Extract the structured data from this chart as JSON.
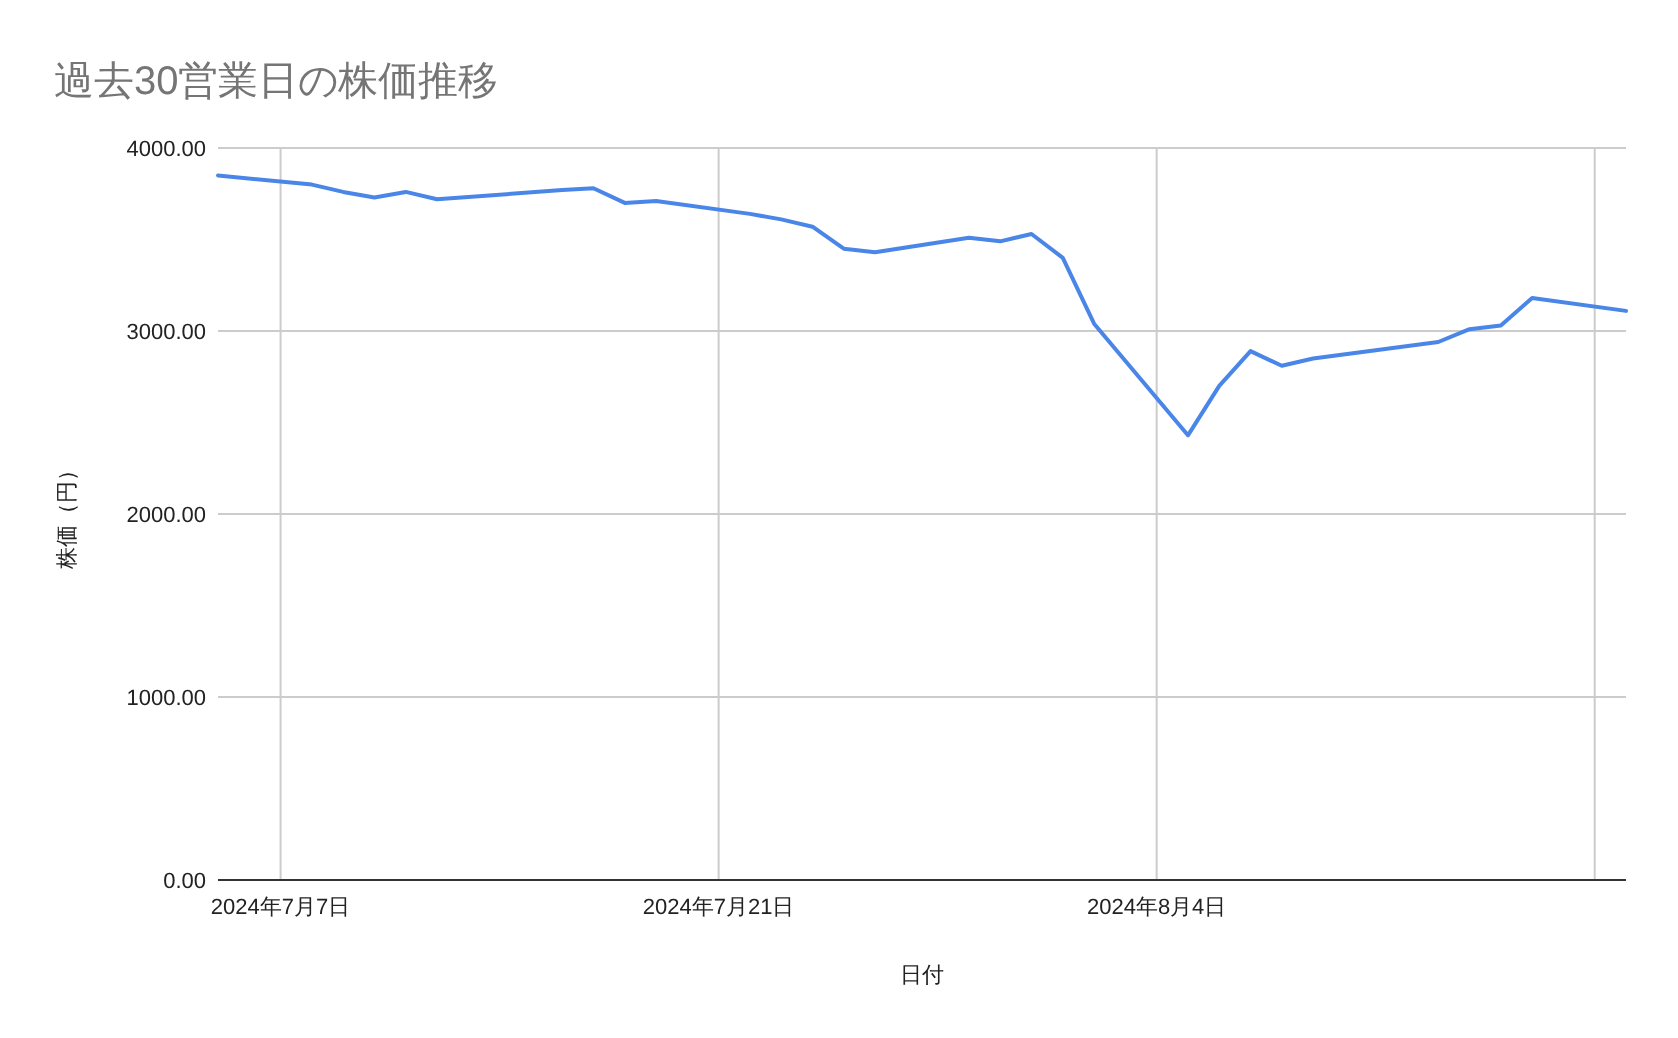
{
  "chart_data": {
    "type": "line",
    "title": "過去30営業日の株価推移",
    "xlabel": "日付",
    "ylabel": "株価（円）",
    "x": [
      "2024-07-05",
      "2024-07-08",
      "2024-07-09",
      "2024-07-10",
      "2024-07-11",
      "2024-07-12",
      "2024-07-16",
      "2024-07-17",
      "2024-07-18",
      "2024-07-19",
      "2024-07-22",
      "2024-07-23",
      "2024-07-24",
      "2024-07-25",
      "2024-07-26",
      "2024-07-29",
      "2024-07-30",
      "2024-07-31",
      "2024-08-01",
      "2024-08-02",
      "2024-08-05",
      "2024-08-06",
      "2024-08-07",
      "2024-08-08",
      "2024-08-09",
      "2024-08-13",
      "2024-08-14",
      "2024-08-15",
      "2024-08-16",
      "2024-08-19"
    ],
    "series": [
      {
        "color": "#4a86e8",
        "values": [
          3850,
          3800,
          3760,
          3730,
          3760,
          3720,
          3770,
          3780,
          3700,
          3710,
          3640,
          3610,
          3570,
          3450,
          3430,
          3510,
          3490,
          3530,
          3400,
          3040,
          2430,
          2700,
          2890,
          2810,
          2850,
          2940,
          3010,
          3030,
          3180,
          3110
        ]
      }
    ],
    "xlim": [
      "2024-07-05",
      "2024-08-19"
    ],
    "xticks": [
      {
        "value": "2024-07-07",
        "label": "2024年7月7日"
      },
      {
        "value": "2024-07-21",
        "label": "2024年7月21日"
      },
      {
        "value": "2024-08-04",
        "label": "2024年8月4日"
      },
      {
        "value": "2024-08-18",
        "label": null
      }
    ],
    "ylim": [
      0,
      4000
    ],
    "yticks": [
      {
        "value": 0,
        "label": "0.00"
      },
      {
        "value": 1000,
        "label": "1000.00"
      },
      {
        "value": 2000,
        "label": "2000.00"
      },
      {
        "value": 3000,
        "label": "3000.00"
      },
      {
        "value": 4000,
        "label": "4000.00"
      }
    ],
    "grid": true
  }
}
